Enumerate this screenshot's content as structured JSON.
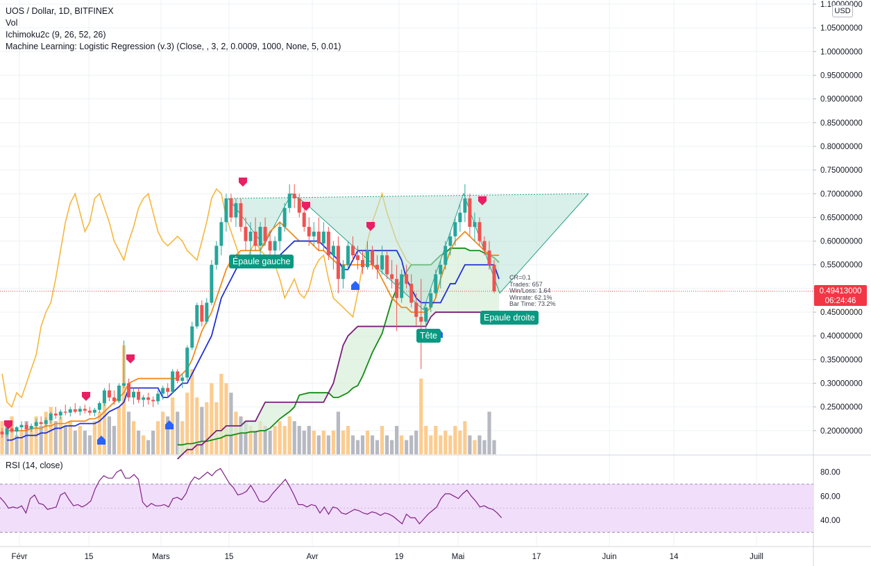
{
  "symbol_title": "UOS / Dollar, 1D, BITFINEX",
  "indicators": [
    "Vol",
    "Ichimoku2c (9, 26, 52, 26)",
    "Machine Learning: Logistic Regression (v.3) (Close, , 3, 2, 0.0009, 1000, None, 5, 0.01)"
  ],
  "rsi_label": "RSI (14, close)",
  "currency_badge": "USD",
  "last_price": "0.49413000",
  "countdown": "06:24:46",
  "pattern_labels": {
    "left_shoulder": "Épaule gauche",
    "head": "Tête",
    "right_shoulder": "Epaule droite"
  },
  "ml_stats": [
    "CR=0.1",
    "Trades: 657",
    "Win/Loss: 1.64",
    "Winrate: 62.1%",
    "Bar Time: 73.2%"
  ],
  "colors": {
    "up": "#26a69a",
    "down": "#ef5350",
    "tenkan": "#1f2fd6",
    "kijun": "#f28a18",
    "chikou": "#f5b73b",
    "span_a": "#138a13",
    "span_b": "#7a1d7a",
    "pattern": "#28a28a",
    "rsi_line": "#7e1f86",
    "rsi_band": "#f1defa",
    "sell_marker": "#e91e63",
    "buy_marker": "#2962ff"
  },
  "chart_data": {
    "type": "candlestick",
    "price_axis": {
      "min": 0.15,
      "max": 1.1,
      "ticks": [
        "0.20000000",
        "0.25000000",
        "0.30000000",
        "0.35000000",
        "0.40000000",
        "0.45000000",
        "0.50000000",
        "0.55000000",
        "0.60000000",
        "0.65000000",
        "0.70000000",
        "0.75000000",
        "0.80000000",
        "0.85000000",
        "0.90000000",
        "0.95000000",
        "1.00000000",
        "1.05000000",
        "1.10000000"
      ]
    },
    "time_axis": {
      "labels": [
        "Févr",
        "15",
        "Mars",
        "15",
        "Avr",
        "19",
        "Mai",
        "17",
        "Juin",
        "14",
        "Juill"
      ]
    },
    "rsi": {
      "period": 14,
      "ticks": [
        "80.00",
        "60.00",
        "40.00"
      ],
      "band": [
        30,
        70
      ],
      "values": [
        59,
        55,
        50,
        51,
        50,
        52,
        46,
        58,
        61,
        54,
        53,
        49,
        50,
        51,
        61,
        63,
        57,
        52,
        53,
        51,
        53,
        56,
        66,
        73,
        77,
        75,
        75,
        80,
        82,
        75,
        75,
        78,
        74,
        55,
        51,
        54,
        52,
        52,
        53,
        51,
        58,
        59,
        57,
        62,
        71,
        76,
        74,
        77,
        80,
        77,
        81,
        83,
        77,
        71,
        67,
        61,
        62,
        64,
        69,
        63,
        56,
        55,
        57,
        62,
        66,
        70,
        74,
        68,
        61,
        53,
        53,
        51,
        53,
        52,
        46,
        51,
        45,
        51,
        50,
        46,
        45,
        47,
        49,
        48,
        46,
        45,
        47,
        46,
        44,
        46,
        45,
        43,
        40,
        37,
        45,
        42,
        42,
        37,
        41,
        45,
        48,
        51,
        58,
        62,
        62,
        60,
        58,
        62,
        65,
        60,
        56,
        51,
        52,
        50,
        49,
        46,
        42
      ],
      "last": 42
    },
    "last_price": 0.49413,
    "pattern": "head-and-shoulders",
    "candles_ohlc_note": "open, high, low, close per daily bar",
    "candles": [
      [
        0.198,
        0.205,
        0.185,
        0.192
      ],
      [
        0.192,
        0.21,
        0.188,
        0.205
      ],
      [
        0.205,
        0.215,
        0.195,
        0.198
      ],
      [
        0.198,
        0.21,
        0.19,
        0.207
      ],
      [
        0.207,
        0.22,
        0.2,
        0.212
      ],
      [
        0.212,
        0.218,
        0.198,
        0.203
      ],
      [
        0.203,
        0.215,
        0.197,
        0.21
      ],
      [
        0.21,
        0.225,
        0.205,
        0.218
      ],
      [
        0.218,
        0.23,
        0.21,
        0.214
      ],
      [
        0.214,
        0.228,
        0.208,
        0.222
      ],
      [
        0.222,
        0.24,
        0.215,
        0.236
      ],
      [
        0.236,
        0.25,
        0.225,
        0.232
      ],
      [
        0.232,
        0.245,
        0.224,
        0.24
      ],
      [
        0.24,
        0.255,
        0.232,
        0.238
      ],
      [
        0.238,
        0.25,
        0.23,
        0.245
      ],
      [
        0.245,
        0.258,
        0.236,
        0.24
      ],
      [
        0.24,
        0.252,
        0.232,
        0.246
      ],
      [
        0.246,
        0.255,
        0.236,
        0.242
      ],
      [
        0.242,
        0.25,
        0.232,
        0.238
      ],
      [
        0.238,
        0.248,
        0.23,
        0.244
      ],
      [
        0.244,
        0.262,
        0.238,
        0.258
      ],
      [
        0.258,
        0.29,
        0.252,
        0.285
      ],
      [
        0.285,
        0.3,
        0.262,
        0.27
      ],
      [
        0.27,
        0.285,
        0.255,
        0.262
      ],
      [
        0.262,
        0.3,
        0.258,
        0.295
      ],
      [
        0.295,
        0.39,
        0.29,
        0.3
      ],
      [
        0.3,
        0.31,
        0.262,
        0.27
      ],
      [
        0.27,
        0.29,
        0.255,
        0.282
      ],
      [
        0.282,
        0.29,
        0.258,
        0.265
      ],
      [
        0.265,
        0.275,
        0.25,
        0.27
      ],
      [
        0.27,
        0.28,
        0.255,
        0.265
      ],
      [
        0.265,
        0.272,
        0.25,
        0.262
      ],
      [
        0.262,
        0.285,
        0.255,
        0.278
      ],
      [
        0.278,
        0.295,
        0.265,
        0.29
      ],
      [
        0.29,
        0.3,
        0.27,
        0.282
      ],
      [
        0.282,
        0.33,
        0.278,
        0.325
      ],
      [
        0.325,
        0.33,
        0.3,
        0.305
      ],
      [
        0.305,
        0.32,
        0.29,
        0.312
      ],
      [
        0.312,
        0.38,
        0.305,
        0.375
      ],
      [
        0.375,
        0.43,
        0.37,
        0.42
      ],
      [
        0.42,
        0.47,
        0.415,
        0.465
      ],
      [
        0.465,
        0.475,
        0.42,
        0.43
      ],
      [
        0.43,
        0.48,
        0.425,
        0.47
      ],
      [
        0.47,
        0.56,
        0.465,
        0.55
      ],
      [
        0.55,
        0.6,
        0.54,
        0.59
      ],
      [
        0.59,
        0.65,
        0.57,
        0.64
      ],
      [
        0.64,
        0.7,
        0.62,
        0.69
      ],
      [
        0.69,
        0.7,
        0.64,
        0.65
      ],
      [
        0.65,
        0.69,
        0.63,
        0.68
      ],
      [
        0.68,
        0.69,
        0.62,
        0.63
      ],
      [
        0.63,
        0.65,
        0.58,
        0.6
      ],
      [
        0.6,
        0.64,
        0.57,
        0.62
      ],
      [
        0.62,
        0.65,
        0.58,
        0.59
      ],
      [
        0.59,
        0.64,
        0.56,
        0.63
      ],
      [
        0.63,
        0.65,
        0.59,
        0.6
      ],
      [
        0.6,
        0.62,
        0.56,
        0.58
      ],
      [
        0.58,
        0.61,
        0.55,
        0.6
      ],
      [
        0.6,
        0.64,
        0.58,
        0.63
      ],
      [
        0.63,
        0.68,
        0.62,
        0.67
      ],
      [
        0.67,
        0.72,
        0.66,
        0.7
      ],
      [
        0.7,
        0.72,
        0.67,
        0.69
      ],
      [
        0.69,
        0.7,
        0.65,
        0.66
      ],
      [
        0.66,
        0.68,
        0.62,
        0.63
      ],
      [
        0.63,
        0.65,
        0.59,
        0.61
      ],
      [
        0.61,
        0.64,
        0.59,
        0.62
      ],
      [
        0.62,
        0.65,
        0.58,
        0.595
      ],
      [
        0.595,
        0.64,
        0.58,
        0.62
      ],
      [
        0.62,
        0.63,
        0.56,
        0.57
      ],
      [
        0.57,
        0.6,
        0.54,
        0.59
      ],
      [
        0.59,
        0.61,
        0.49,
        0.52
      ],
      [
        0.52,
        0.56,
        0.5,
        0.55
      ],
      [
        0.55,
        0.6,
        0.54,
        0.59
      ],
      [
        0.59,
        0.61,
        0.56,
        0.57
      ],
      [
        0.57,
        0.59,
        0.54,
        0.56
      ],
      [
        0.56,
        0.58,
        0.53,
        0.545
      ],
      [
        0.545,
        0.6,
        0.54,
        0.58
      ],
      [
        0.58,
        0.59,
        0.54,
        0.55
      ],
      [
        0.55,
        0.57,
        0.52,
        0.54
      ],
      [
        0.54,
        0.59,
        0.53,
        0.57
      ],
      [
        0.57,
        0.58,
        0.52,
        0.53
      ],
      [
        0.53,
        0.56,
        0.5,
        0.52
      ],
      [
        0.52,
        0.55,
        0.41,
        0.48
      ],
      [
        0.48,
        0.54,
        0.47,
        0.53
      ],
      [
        0.53,
        0.55,
        0.5,
        0.51
      ],
      [
        0.51,
        0.53,
        0.46,
        0.47
      ],
      [
        0.47,
        0.49,
        0.42,
        0.44
      ],
      [
        0.44,
        0.52,
        0.33,
        0.43
      ],
      [
        0.43,
        0.47,
        0.41,
        0.46
      ],
      [
        0.46,
        0.5,
        0.45,
        0.49
      ],
      [
        0.49,
        0.54,
        0.48,
        0.53
      ],
      [
        0.53,
        0.56,
        0.5,
        0.55
      ],
      [
        0.55,
        0.6,
        0.54,
        0.59
      ],
      [
        0.59,
        0.62,
        0.57,
        0.61
      ],
      [
        0.61,
        0.65,
        0.59,
        0.64
      ],
      [
        0.64,
        0.68,
        0.62,
        0.66
      ],
      [
        0.66,
        0.72,
        0.64,
        0.69
      ],
      [
        0.69,
        0.7,
        0.61,
        0.63
      ],
      [
        0.63,
        0.66,
        0.6,
        0.64
      ],
      [
        0.64,
        0.65,
        0.59,
        0.6
      ],
      [
        0.6,
        0.61,
        0.57,
        0.58
      ],
      [
        0.58,
        0.6,
        0.54,
        0.55
      ],
      [
        0.55,
        0.56,
        0.49,
        0.494
      ]
    ],
    "volume_bars": [
      [
        0.22,
        "up"
      ],
      [
        0.21,
        "down"
      ],
      [
        0.23,
        "up"
      ],
      [
        0.19,
        "down"
      ],
      [
        0.2,
        "up"
      ],
      [
        0.22,
        "down"
      ],
      [
        0.21,
        "up"
      ],
      [
        0.23,
        "up"
      ],
      [
        0.21,
        "down"
      ],
      [
        0.24,
        "up"
      ],
      [
        0.25,
        "up"
      ],
      [
        0.22,
        "down"
      ],
      [
        0.23,
        "up"
      ],
      [
        0.21,
        "down"
      ],
      [
        0.22,
        "up"
      ],
      [
        0.2,
        "down"
      ],
      [
        0.21,
        "up"
      ],
      [
        0.2,
        "down"
      ],
      [
        0.19,
        "down"
      ],
      [
        0.22,
        "up"
      ],
      [
        0.24,
        "up"
      ],
      [
        0.27,
        "up"
      ],
      [
        0.23,
        "down"
      ],
      [
        0.21,
        "down"
      ],
      [
        0.25,
        "up"
      ],
      [
        0.38,
        "up"
      ],
      [
        0.24,
        "down"
      ],
      [
        0.22,
        "up"
      ],
      [
        0.2,
        "down"
      ],
      [
        0.19,
        "up"
      ],
      [
        0.18,
        "down"
      ],
      [
        0.2,
        "down"
      ],
      [
        0.22,
        "up"
      ],
      [
        0.24,
        "up"
      ],
      [
        0.23,
        "down"
      ],
      [
        0.27,
        "up"
      ],
      [
        0.24,
        "down"
      ],
      [
        0.22,
        "up"
      ],
      [
        0.28,
        "up"
      ],
      [
        0.33,
        "up"
      ],
      [
        0.27,
        "up"
      ],
      [
        0.25,
        "down"
      ],
      [
        0.26,
        "up"
      ],
      [
        0.3,
        "up"
      ],
      [
        0.26,
        "up"
      ],
      [
        0.32,
        "up"
      ],
      [
        0.3,
        "up"
      ],
      [
        0.28,
        "down"
      ],
      [
        0.24,
        "up"
      ],
      [
        0.23,
        "down"
      ],
      [
        0.22,
        "down"
      ],
      [
        0.21,
        "up"
      ],
      [
        0.2,
        "down"
      ],
      [
        0.22,
        "up"
      ],
      [
        0.21,
        "down"
      ],
      [
        0.2,
        "down"
      ],
      [
        0.21,
        "up"
      ],
      [
        0.22,
        "up"
      ],
      [
        0.21,
        "up"
      ],
      [
        0.23,
        "up"
      ],
      [
        0.22,
        "down"
      ],
      [
        0.21,
        "down"
      ],
      [
        0.2,
        "down"
      ],
      [
        0.21,
        "down"
      ],
      [
        0.2,
        "up"
      ],
      [
        0.19,
        "down"
      ],
      [
        0.2,
        "up"
      ],
      [
        0.19,
        "down"
      ],
      [
        0.2,
        "up"
      ],
      [
        0.24,
        "down"
      ],
      [
        0.2,
        "up"
      ],
      [
        0.21,
        "up"
      ],
      [
        0.19,
        "down"
      ],
      [
        0.18,
        "down"
      ],
      [
        0.19,
        "down"
      ],
      [
        0.2,
        "up"
      ],
      [
        0.19,
        "down"
      ],
      [
        0.18,
        "down"
      ],
      [
        0.21,
        "up"
      ],
      [
        0.19,
        "down"
      ],
      [
        0.18,
        "down"
      ],
      [
        0.21,
        "down"
      ],
      [
        0.19,
        "up"
      ],
      [
        0.18,
        "down"
      ],
      [
        0.19,
        "down"
      ],
      [
        0.2,
        "down"
      ],
      [
        0.31,
        "up"
      ],
      [
        0.21,
        "up"
      ],
      [
        0.19,
        "up"
      ],
      [
        0.21,
        "up"
      ],
      [
        0.19,
        "up"
      ],
      [
        0.2,
        "up"
      ],
      [
        0.19,
        "up"
      ],
      [
        0.21,
        "up"
      ],
      [
        0.2,
        "up"
      ],
      [
        0.22,
        "up"
      ],
      [
        0.19,
        "down"
      ],
      [
        0.18,
        "up"
      ],
      [
        0.19,
        "down"
      ],
      [
        0.18,
        "down"
      ],
      [
        0.24,
        "down"
      ],
      [
        0.18,
        "down"
      ]
    ],
    "ichimoku": {
      "tenkan": [
        0.18,
        0.18,
        0.185,
        0.185,
        0.19,
        0.19,
        0.19,
        0.195,
        0.195,
        0.2,
        0.205,
        0.205,
        0.21,
        0.21,
        0.21,
        0.215,
        0.215,
        0.215,
        0.215,
        0.22,
        0.23,
        0.24,
        0.245,
        0.25,
        0.26,
        0.29,
        0.29,
        0.29,
        0.29,
        0.29,
        0.29,
        0.29,
        0.27,
        0.27,
        0.28,
        0.29,
        0.3,
        0.3,
        0.32,
        0.34,
        0.36,
        0.38,
        0.4,
        0.44,
        0.48,
        0.5,
        0.52,
        0.54,
        0.56,
        0.56,
        0.56,
        0.56,
        0.56,
        0.56,
        0.56,
        0.56,
        0.57,
        0.58,
        0.59,
        0.6,
        0.6,
        0.6,
        0.6,
        0.6,
        0.6,
        0.59,
        0.58,
        0.57,
        0.56,
        0.54,
        0.54,
        0.56,
        0.58,
        0.58,
        0.58,
        0.58,
        0.58,
        0.58,
        0.58,
        0.58,
        0.58,
        0.56,
        0.52,
        0.5,
        0.48,
        0.47,
        0.47,
        0.47,
        0.47,
        0.47,
        0.49,
        0.51,
        0.51,
        0.53,
        0.55,
        0.55,
        0.55,
        0.55,
        0.55,
        0.55,
        0.55,
        0.52
      ],
      "kijun": [
        0.2,
        0.2,
        0.2,
        0.2,
        0.2,
        0.205,
        0.205,
        0.205,
        0.21,
        0.21,
        0.215,
        0.215,
        0.215,
        0.22,
        0.22,
        0.22,
        0.22,
        0.225,
        0.225,
        0.23,
        0.24,
        0.25,
        0.26,
        0.27,
        0.28,
        0.3,
        0.305,
        0.31,
        0.31,
        0.31,
        0.31,
        0.31,
        0.31,
        0.31,
        0.31,
        0.31,
        0.32,
        0.33,
        0.35,
        0.38,
        0.41,
        0.43,
        0.45,
        0.48,
        0.51,
        0.54,
        0.56,
        0.57,
        0.58,
        0.58,
        0.58,
        0.58,
        0.58,
        0.6,
        0.62,
        0.63,
        0.64,
        0.63,
        0.62,
        0.61,
        0.6,
        0.6,
        0.6,
        0.59,
        0.58,
        0.58,
        0.57,
        0.56,
        0.55,
        0.55,
        0.55,
        0.55,
        0.55,
        0.55,
        0.55,
        0.55,
        0.54,
        0.52,
        0.5,
        0.48,
        0.47,
        0.46,
        0.46,
        0.45,
        0.45,
        0.45,
        0.45,
        0.46,
        0.48,
        0.52,
        0.55,
        0.58,
        0.6,
        0.61,
        0.62,
        0.61,
        0.6,
        0.59,
        0.58,
        0.57,
        0.57,
        0.57
      ]
    }
  }
}
